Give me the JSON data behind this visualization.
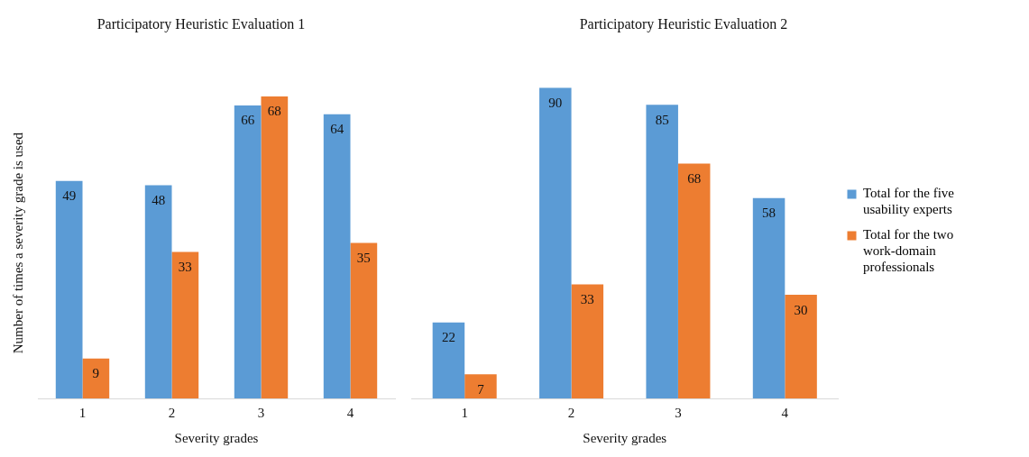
{
  "chart_data": [
    {
      "type": "bar",
      "title": "Participatory Heuristic Evaluation 1",
      "xlabel": "Severity grades",
      "ylabel": "Number of times a severity grade is used",
      "categories": [
        "1",
        "2",
        "3",
        "4"
      ],
      "tick_labels": "x",
      "data_labels": true,
      "legend": false,
      "series": [
        {
          "color": "#5b9bd5",
          "values": [
            49,
            48,
            66,
            64
          ]
        },
        {
          "color": "#ed7d31",
          "values": [
            9,
            33,
            68,
            35
          ]
        }
      ]
    },
    {
      "type": "bar",
      "title": "Participatory Heuristic Evaluation 2",
      "xlabel": "Severity grades",
      "categories": [
        "1",
        "2",
        "3",
        "4"
      ],
      "tick_labels": "x",
      "data_labels": true,
      "legend": "right",
      "series": [
        {
          "name": "Total for the five usability experts",
          "color": "#5b9bd5",
          "values": [
            22,
            90,
            85,
            58
          ]
        },
        {
          "name": "Total for the two work-domain professionals",
          "color": "#ed7d31",
          "values": [
            7,
            33,
            68,
            30
          ]
        }
      ]
    }
  ]
}
